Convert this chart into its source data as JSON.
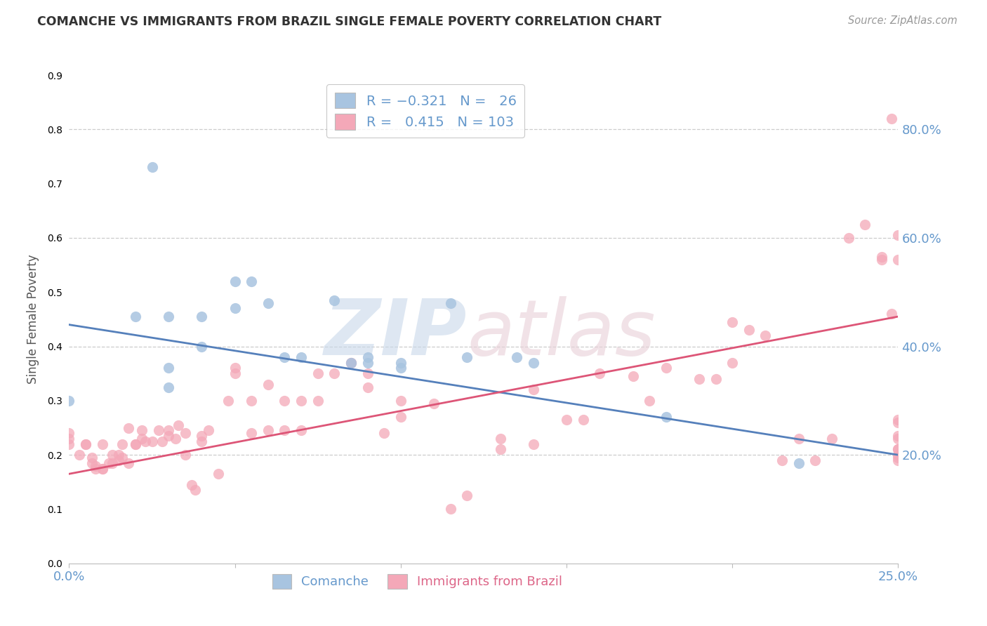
{
  "title": "COMANCHE VS IMMIGRANTS FROM BRAZIL SINGLE FEMALE POVERTY CORRELATION CHART",
  "source_text": "Source: ZipAtlas.com",
  "ylabel": "Single Female Poverty",
  "xlim": [
    0.0,
    0.25
  ],
  "ylim": [
    0.0,
    0.9
  ],
  "ytick_labels": [
    "20.0%",
    "40.0%",
    "60.0%",
    "80.0%"
  ],
  "ytick_values": [
    0.2,
    0.4,
    0.6,
    0.8
  ],
  "xtick_labels": [
    "0.0%",
    "",
    "",
    "",
    "",
    "25.0%"
  ],
  "xtick_values": [
    0.0,
    0.05,
    0.1,
    0.15,
    0.2,
    0.25
  ],
  "color_comanche": "#a8c4e0",
  "color_brazil": "#f4a8b8",
  "line_color_comanche": "#5580bb",
  "line_color_brazil": "#dd5577",
  "blue_line_x0": 0.0,
  "blue_line_y0": 0.44,
  "blue_line_x1": 0.25,
  "blue_line_y1": 0.2,
  "pink_line_x0": 0.0,
  "pink_line_y0": 0.165,
  "pink_line_x1": 0.25,
  "pink_line_y1": 0.455,
  "comanche_x": [
    0.0,
    0.02,
    0.025,
    0.03,
    0.03,
    0.03,
    0.04,
    0.04,
    0.05,
    0.05,
    0.055,
    0.06,
    0.065,
    0.07,
    0.08,
    0.085,
    0.09,
    0.09,
    0.1,
    0.1,
    0.115,
    0.12,
    0.135,
    0.14,
    0.18,
    0.22
  ],
  "comanche_y": [
    0.3,
    0.455,
    0.73,
    0.455,
    0.36,
    0.325,
    0.4,
    0.455,
    0.47,
    0.52,
    0.52,
    0.48,
    0.38,
    0.38,
    0.485,
    0.37,
    0.37,
    0.38,
    0.36,
    0.37,
    0.48,
    0.38,
    0.38,
    0.37,
    0.27,
    0.185
  ],
  "brazil_x": [
    0.0,
    0.0,
    0.0,
    0.003,
    0.005,
    0.005,
    0.007,
    0.007,
    0.008,
    0.008,
    0.01,
    0.01,
    0.01,
    0.012,
    0.013,
    0.013,
    0.015,
    0.015,
    0.016,
    0.016,
    0.018,
    0.018,
    0.02,
    0.02,
    0.022,
    0.022,
    0.023,
    0.025,
    0.027,
    0.028,
    0.03,
    0.03,
    0.032,
    0.033,
    0.035,
    0.035,
    0.037,
    0.038,
    0.04,
    0.04,
    0.042,
    0.045,
    0.048,
    0.05,
    0.05,
    0.055,
    0.055,
    0.06,
    0.06,
    0.065,
    0.065,
    0.07,
    0.07,
    0.075,
    0.075,
    0.08,
    0.085,
    0.085,
    0.09,
    0.09,
    0.095,
    0.1,
    0.1,
    0.11,
    0.115,
    0.12,
    0.13,
    0.13,
    0.14,
    0.14,
    0.15,
    0.155,
    0.16,
    0.17,
    0.175,
    0.18,
    0.19,
    0.195,
    0.2,
    0.2,
    0.205,
    0.21,
    0.215,
    0.22,
    0.225,
    0.23,
    0.235,
    0.24,
    0.245,
    0.245,
    0.248,
    0.248,
    0.25,
    0.25,
    0.25,
    0.25,
    0.25,
    0.25,
    0.25,
    0.25,
    0.25,
    0.25,
    0.25
  ],
  "brazil_y": [
    0.22,
    0.23,
    0.24,
    0.2,
    0.22,
    0.22,
    0.185,
    0.195,
    0.175,
    0.18,
    0.175,
    0.175,
    0.22,
    0.185,
    0.185,
    0.2,
    0.19,
    0.2,
    0.195,
    0.22,
    0.185,
    0.25,
    0.22,
    0.22,
    0.245,
    0.23,
    0.225,
    0.225,
    0.245,
    0.225,
    0.235,
    0.245,
    0.23,
    0.255,
    0.2,
    0.24,
    0.145,
    0.135,
    0.225,
    0.235,
    0.245,
    0.165,
    0.3,
    0.35,
    0.36,
    0.24,
    0.3,
    0.245,
    0.33,
    0.245,
    0.3,
    0.245,
    0.3,
    0.3,
    0.35,
    0.35,
    0.37,
    0.37,
    0.35,
    0.325,
    0.24,
    0.27,
    0.3,
    0.295,
    0.1,
    0.125,
    0.21,
    0.23,
    0.22,
    0.32,
    0.265,
    0.265,
    0.35,
    0.345,
    0.3,
    0.36,
    0.34,
    0.34,
    0.37,
    0.445,
    0.43,
    0.42,
    0.19,
    0.23,
    0.19,
    0.23,
    0.6,
    0.625,
    0.56,
    0.565,
    0.46,
    0.82,
    0.195,
    0.21,
    0.2,
    0.235,
    0.26,
    0.23,
    0.56,
    0.265,
    0.605,
    0.19,
    0.21
  ]
}
